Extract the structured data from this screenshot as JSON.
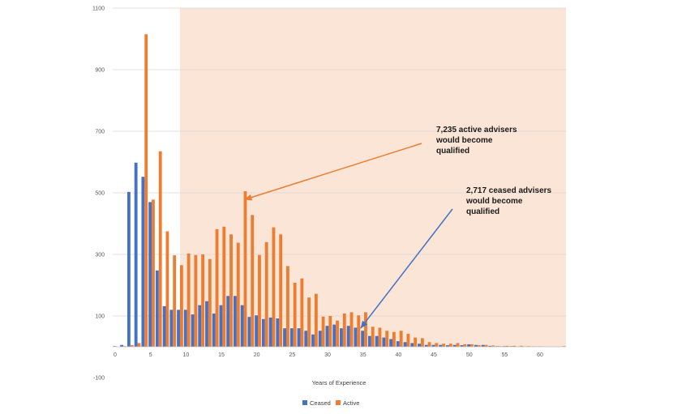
{
  "chart_data": {
    "type": "bar",
    "xlabel": "Years of Experience",
    "ylabel": "",
    "xlim": [
      0,
      64
    ],
    "ylim": [
      -100,
      1100
    ],
    "yticks": [
      -100,
      100,
      300,
      500,
      700,
      900,
      1100
    ],
    "xticks": [
      0,
      5,
      10,
      15,
      20,
      25,
      30,
      35,
      40,
      45,
      50,
      55,
      60
    ],
    "grid": "horizontal",
    "legend": "bottom",
    "shaded_region": {
      "from": 9.5,
      "to": 64,
      "color": "#fbe5d6"
    },
    "series": [
      {
        "name": "Ceased",
        "color": "#4472c4",
        "x": [
          0,
          1,
          2,
          3,
          4,
          5,
          6,
          7,
          8,
          9,
          10,
          11,
          12,
          13,
          14,
          15,
          16,
          17,
          18,
          19,
          20,
          21,
          22,
          23,
          24,
          25,
          26,
          27,
          28,
          29,
          30,
          31,
          32,
          33,
          34,
          35,
          36,
          37,
          38,
          39,
          40,
          41,
          42,
          43,
          44,
          45,
          46,
          47,
          48,
          49,
          50,
          51,
          52,
          53,
          54,
          55,
          56,
          57,
          58,
          59,
          60,
          61,
          62,
          63
        ],
        "values": [
          2,
          6,
          503,
          598,
          552,
          470,
          248,
          132,
          120,
          120,
          120,
          105,
          135,
          148,
          108,
          135,
          165,
          165,
          135,
          97,
          102,
          90,
          95,
          92,
          60,
          60,
          60,
          52,
          40,
          52,
          68,
          72,
          60,
          68,
          62,
          52,
          35,
          35,
          30,
          25,
          18,
          15,
          12,
          10,
          6,
          6,
          6,
          5,
          6,
          5,
          8,
          6,
          6,
          3,
          2,
          2,
          2,
          1,
          1,
          1,
          1,
          0,
          0,
          0
        ]
      },
      {
        "name": "Active",
        "color": "#ed7d31",
        "x": [
          0,
          1,
          2,
          3,
          4,
          5,
          6,
          7,
          8,
          9,
          10,
          11,
          12,
          13,
          14,
          15,
          16,
          17,
          18,
          19,
          20,
          21,
          22,
          23,
          24,
          25,
          26,
          27,
          28,
          29,
          30,
          31,
          32,
          33,
          34,
          35,
          36,
          37,
          38,
          39,
          40,
          41,
          42,
          43,
          44,
          45,
          46,
          47,
          48,
          49,
          50,
          51,
          52,
          53,
          54,
          55,
          56,
          57,
          58,
          59,
          60,
          61,
          62,
          63
        ],
        "values": [
          0,
          2,
          5,
          12,
          1015,
          478,
          635,
          375,
          297,
          265,
          303,
          298,
          300,
          285,
          382,
          390,
          365,
          338,
          505,
          428,
          298,
          340,
          388,
          365,
          262,
          208,
          222,
          160,
          172,
          98,
          100,
          85,
          108,
          112,
          102,
          112,
          65,
          62,
          52,
          48,
          52,
          42,
          30,
          28,
          15,
          12,
          10,
          10,
          12,
          8,
          8,
          5,
          6,
          4,
          2,
          3,
          3,
          3,
          2,
          1,
          1,
          0,
          0,
          2
        ]
      }
    ],
    "annotations": [
      {
        "lines": [
          "7,235 active advisers",
          "would become",
          "qualified"
        ],
        "arrow_to": {
          "x": 18.6,
          "y": 478
        },
        "color": "#ed7d31"
      },
      {
        "lines": [
          "2,717 ceased advisers",
          "would become",
          "qualified"
        ],
        "arrow_to": {
          "x": 35.0,
          "y": 60
        },
        "color": "#4472c4"
      }
    ]
  }
}
